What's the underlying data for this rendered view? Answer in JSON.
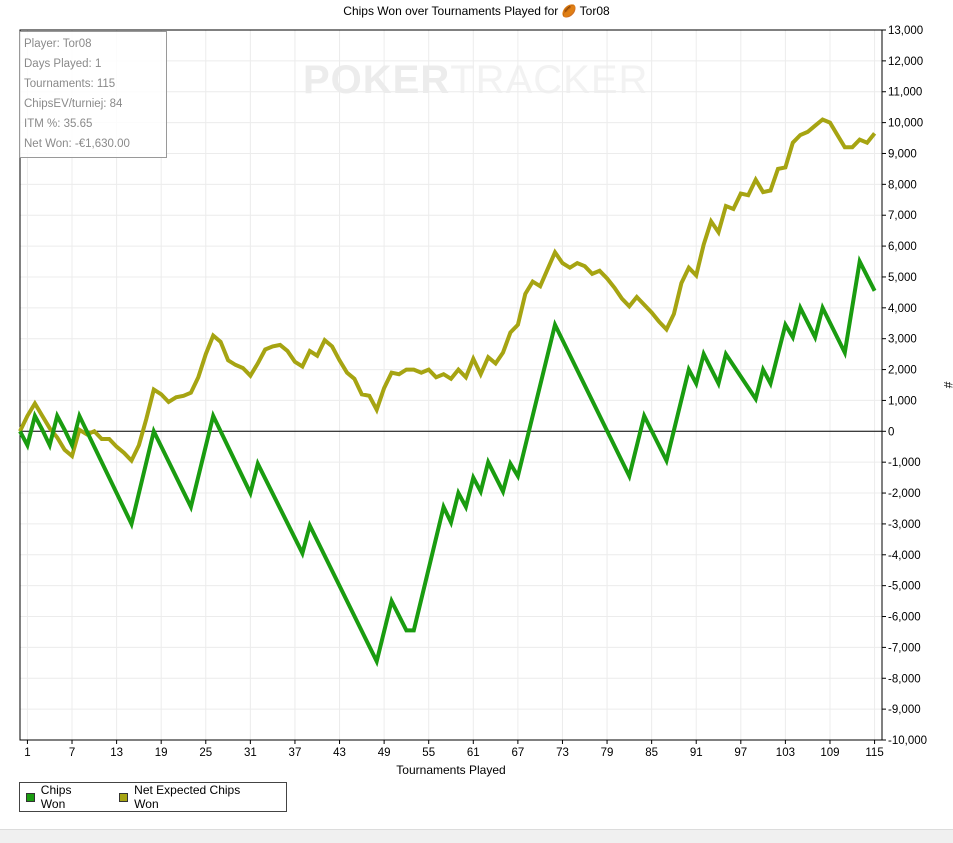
{
  "watermark": {
    "part1": "POKER",
    "part2": "TRACKER"
  },
  "stats": {
    "player": "Player: Tor08",
    "days": "Days Played: 1",
    "tournaments": "Tournaments: 115",
    "chipsev": "ChipsEV/turniej: 84",
    "itm": "ITM %: 35.65",
    "netwon": "Net Won: -€1,630.00"
  },
  "chart_data": {
    "type": "line",
    "title": "Chips Won over Tournaments Played for 🏉 Tor08",
    "xlabel": "Tournaments Played",
    "ylabel": "#",
    "xlim": [
      0,
      116
    ],
    "ylim": [
      -10000,
      13000
    ],
    "x_ticks": [
      1,
      7,
      13,
      19,
      25,
      31,
      37,
      43,
      49,
      55,
      61,
      67,
      73,
      79,
      85,
      91,
      97,
      103,
      109,
      115
    ],
    "y_ticks": [
      -10000,
      -9000,
      -8000,
      -7000,
      -6000,
      -5000,
      -4000,
      -3000,
      -2000,
      -1000,
      0,
      1000,
      2000,
      3000,
      4000,
      5000,
      6000,
      7000,
      8000,
      9000,
      10000,
      11000,
      12000,
      13000
    ],
    "y_tick_labels": [
      "-10,000",
      "-9,000",
      "-8,000",
      "-7,000",
      "-6,000",
      "-5,000",
      "-4,000",
      "-3,000",
      "-2,000",
      "-1,000",
      "0",
      "1,000",
      "2,000",
      "3,000",
      "4,000",
      "5,000",
      "6,000",
      "7,000",
      "8,000",
      "9,000",
      "10,000",
      "11,000",
      "12,000",
      "13,000"
    ],
    "grid": true,
    "legend": "bottom-left",
    "series": [
      {
        "name": "Chips Won",
        "color": "#1a9c10",
        "points": [
          [
            0,
            0
          ],
          [
            1,
            -450
          ],
          [
            2,
            500
          ],
          [
            3,
            50
          ],
          [
            4,
            -450
          ],
          [
            5,
            500
          ],
          [
            6,
            50
          ],
          [
            7,
            -450
          ],
          [
            8,
            500
          ],
          [
            15,
            -3000
          ],
          [
            18,
            0
          ],
          [
            23,
            -2450
          ],
          [
            26,
            500
          ],
          [
            31,
            -2000
          ],
          [
            32,
            -1050
          ],
          [
            38,
            -3950
          ],
          [
            39,
            -3050
          ],
          [
            48,
            -7450
          ],
          [
            50,
            -5500
          ],
          [
            52,
            -6450
          ],
          [
            53,
            -6450
          ],
          [
            57,
            -2450
          ],
          [
            58,
            -2950
          ],
          [
            59,
            -2000
          ],
          [
            60,
            -2450
          ],
          [
            61,
            -1500
          ],
          [
            62,
            -1950
          ],
          [
            63,
            -1000
          ],
          [
            65,
            -1950
          ],
          [
            66,
            -1050
          ],
          [
            67,
            -1450
          ],
          [
            72,
            3450
          ],
          [
            82,
            -1450
          ],
          [
            84,
            500
          ],
          [
            87,
            -950
          ],
          [
            90,
            2000
          ],
          [
            91,
            1550
          ],
          [
            92,
            2500
          ],
          [
            94,
            1550
          ],
          [
            95,
            2500
          ],
          [
            99,
            1050
          ],
          [
            100,
            2000
          ],
          [
            101,
            1550
          ],
          [
            103,
            3450
          ],
          [
            104,
            3050
          ],
          [
            105,
            4000
          ],
          [
            107,
            3050
          ],
          [
            108,
            4000
          ],
          [
            111,
            2550
          ],
          [
            113,
            5500
          ],
          [
            115,
            4550
          ]
        ]
      },
      {
        "name": "Net Expected Chips Won",
        "color": "#a6a412",
        "points": [
          [
            0,
            0
          ],
          [
            1,
            500
          ],
          [
            2,
            900
          ],
          [
            3,
            500
          ],
          [
            4,
            100
          ],
          [
            5,
            -200
          ],
          [
            6,
            -600
          ],
          [
            7,
            -800
          ],
          [
            8,
            50
          ],
          [
            9,
            -100
          ],
          [
            10,
            0
          ],
          [
            11,
            -250
          ],
          [
            12,
            -250
          ],
          [
            13,
            -500
          ],
          [
            14,
            -700
          ],
          [
            15,
            -950
          ],
          [
            16,
            -450
          ],
          [
            17,
            400
          ],
          [
            18,
            1350
          ],
          [
            19,
            1200
          ],
          [
            20,
            950
          ],
          [
            21,
            1100
          ],
          [
            22,
            1150
          ],
          [
            23,
            1250
          ],
          [
            24,
            1750
          ],
          [
            25,
            2500
          ],
          [
            26,
            3100
          ],
          [
            27,
            2900
          ],
          [
            28,
            2300
          ],
          [
            29,
            2150
          ],
          [
            30,
            2050
          ],
          [
            31,
            1800
          ],
          [
            32,
            2200
          ],
          [
            33,
            2650
          ],
          [
            34,
            2750
          ],
          [
            35,
            2800
          ],
          [
            36,
            2600
          ],
          [
            37,
            2250
          ],
          [
            38,
            2100
          ],
          [
            39,
            2600
          ],
          [
            40,
            2450
          ],
          [
            41,
            2950
          ],
          [
            42,
            2750
          ],
          [
            43,
            2300
          ],
          [
            44,
            1900
          ],
          [
            45,
            1700
          ],
          [
            46,
            1200
          ],
          [
            47,
            1150
          ],
          [
            48,
            700
          ],
          [
            49,
            1400
          ],
          [
            50,
            1900
          ],
          [
            51,
            1850
          ],
          [
            52,
            2000
          ],
          [
            53,
            2000
          ],
          [
            54,
            1900
          ],
          [
            55,
            2000
          ],
          [
            56,
            1750
          ],
          [
            57,
            1850
          ],
          [
            58,
            1700
          ],
          [
            59,
            2000
          ],
          [
            60,
            1750
          ],
          [
            61,
            2350
          ],
          [
            62,
            1850
          ],
          [
            63,
            2400
          ],
          [
            64,
            2200
          ],
          [
            65,
            2550
          ],
          [
            66,
            3200
          ],
          [
            67,
            3450
          ],
          [
            68,
            4450
          ],
          [
            69,
            4850
          ],
          [
            70,
            4700
          ],
          [
            71,
            5250
          ],
          [
            72,
            5800
          ],
          [
            73,
            5450
          ],
          [
            74,
            5300
          ],
          [
            75,
            5450
          ],
          [
            76,
            5350
          ],
          [
            77,
            5100
          ],
          [
            78,
            5200
          ],
          [
            79,
            4950
          ],
          [
            80,
            4650
          ],
          [
            81,
            4300
          ],
          [
            82,
            4050
          ],
          [
            83,
            4350
          ],
          [
            84,
            4100
          ],
          [
            85,
            3850
          ],
          [
            86,
            3550
          ],
          [
            87,
            3300
          ],
          [
            88,
            3800
          ],
          [
            89,
            4800
          ],
          [
            90,
            5300
          ],
          [
            91,
            5050
          ],
          [
            92,
            6050
          ],
          [
            93,
            6800
          ],
          [
            94,
            6450
          ],
          [
            95,
            7300
          ],
          [
            96,
            7200
          ],
          [
            97,
            7700
          ],
          [
            98,
            7650
          ],
          [
            99,
            8150
          ],
          [
            100,
            7750
          ],
          [
            101,
            7800
          ],
          [
            102,
            8500
          ],
          [
            103,
            8550
          ],
          [
            104,
            9350
          ],
          [
            105,
            9600
          ],
          [
            106,
            9700
          ],
          [
            107,
            9900
          ],
          [
            108,
            10100
          ],
          [
            109,
            10000
          ],
          [
            110,
            9600
          ],
          [
            111,
            9200
          ],
          [
            112,
            9200
          ],
          [
            113,
            9450
          ],
          [
            114,
            9350
          ],
          [
            115,
            9650
          ]
        ]
      }
    ]
  }
}
